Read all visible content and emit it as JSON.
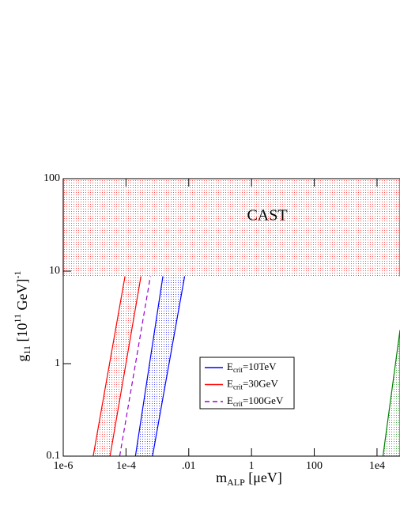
{
  "chart_data": {
    "type": "line",
    "xscale": "log",
    "yscale": "log",
    "xlim": [
      1e-06,
      54000
    ],
    "ylim": [
      0.1,
      100
    ],
    "xticks": [
      {
        "value": 1e-06,
        "label": "1e-6"
      },
      {
        "value": 0.0001,
        "label": "1e-4"
      },
      {
        "value": 0.01,
        "label": ".01"
      },
      1,
      100,
      {
        "value": 10000,
        "label": "1e4"
      }
    ],
    "yticks": [
      0.1,
      1,
      10,
      100
    ],
    "xlabel": [
      "m",
      "ALP",
      " [μeV]"
    ],
    "ylabel": [
      "g",
      "11",
      " [10",
      "11",
      " GeV]",
      "-1"
    ],
    "annotation": "CAST",
    "series": [
      {
        "name": [
          "E",
          "crit",
          "=10TeV"
        ],
        "color": "#0000ff",
        "x": [
          0.0002,
          0.0015
        ],
        "x_right": [
          0.0007,
          0.0074
        ],
        "values": [
          0.1,
          8.8
        ]
      },
      {
        "name": [
          "E",
          "crit",
          "=30GeV"
        ],
        "color": "#ff0000",
        "x": [
          9e-06,
          9.3e-05
        ],
        "x_right": [
          3.1e-05,
          0.0003
        ],
        "values": [
          0.1,
          8.8
        ]
      },
      {
        "name": [
          "E",
          "crit",
          "=100GeV"
        ],
        "color": "#9900cc",
        "dash": "6,4",
        "x": [
          6.3e-05,
          0.0006
        ],
        "values": [
          0.1,
          8.8
        ]
      },
      {
        "color": "#ff0000",
        "x": [
          1e-06,
          1e-06
        ],
        "x_right": [
          54000,
          54000
        ],
        "values": [
          8.8,
          100
        ]
      },
      {
        "color": "#008000",
        "x": [
          15500,
          54000
        ],
        "x_right": [
          54000,
          54000
        ],
        "values": [
          0.1,
          2.3
        ]
      }
    ]
  }
}
